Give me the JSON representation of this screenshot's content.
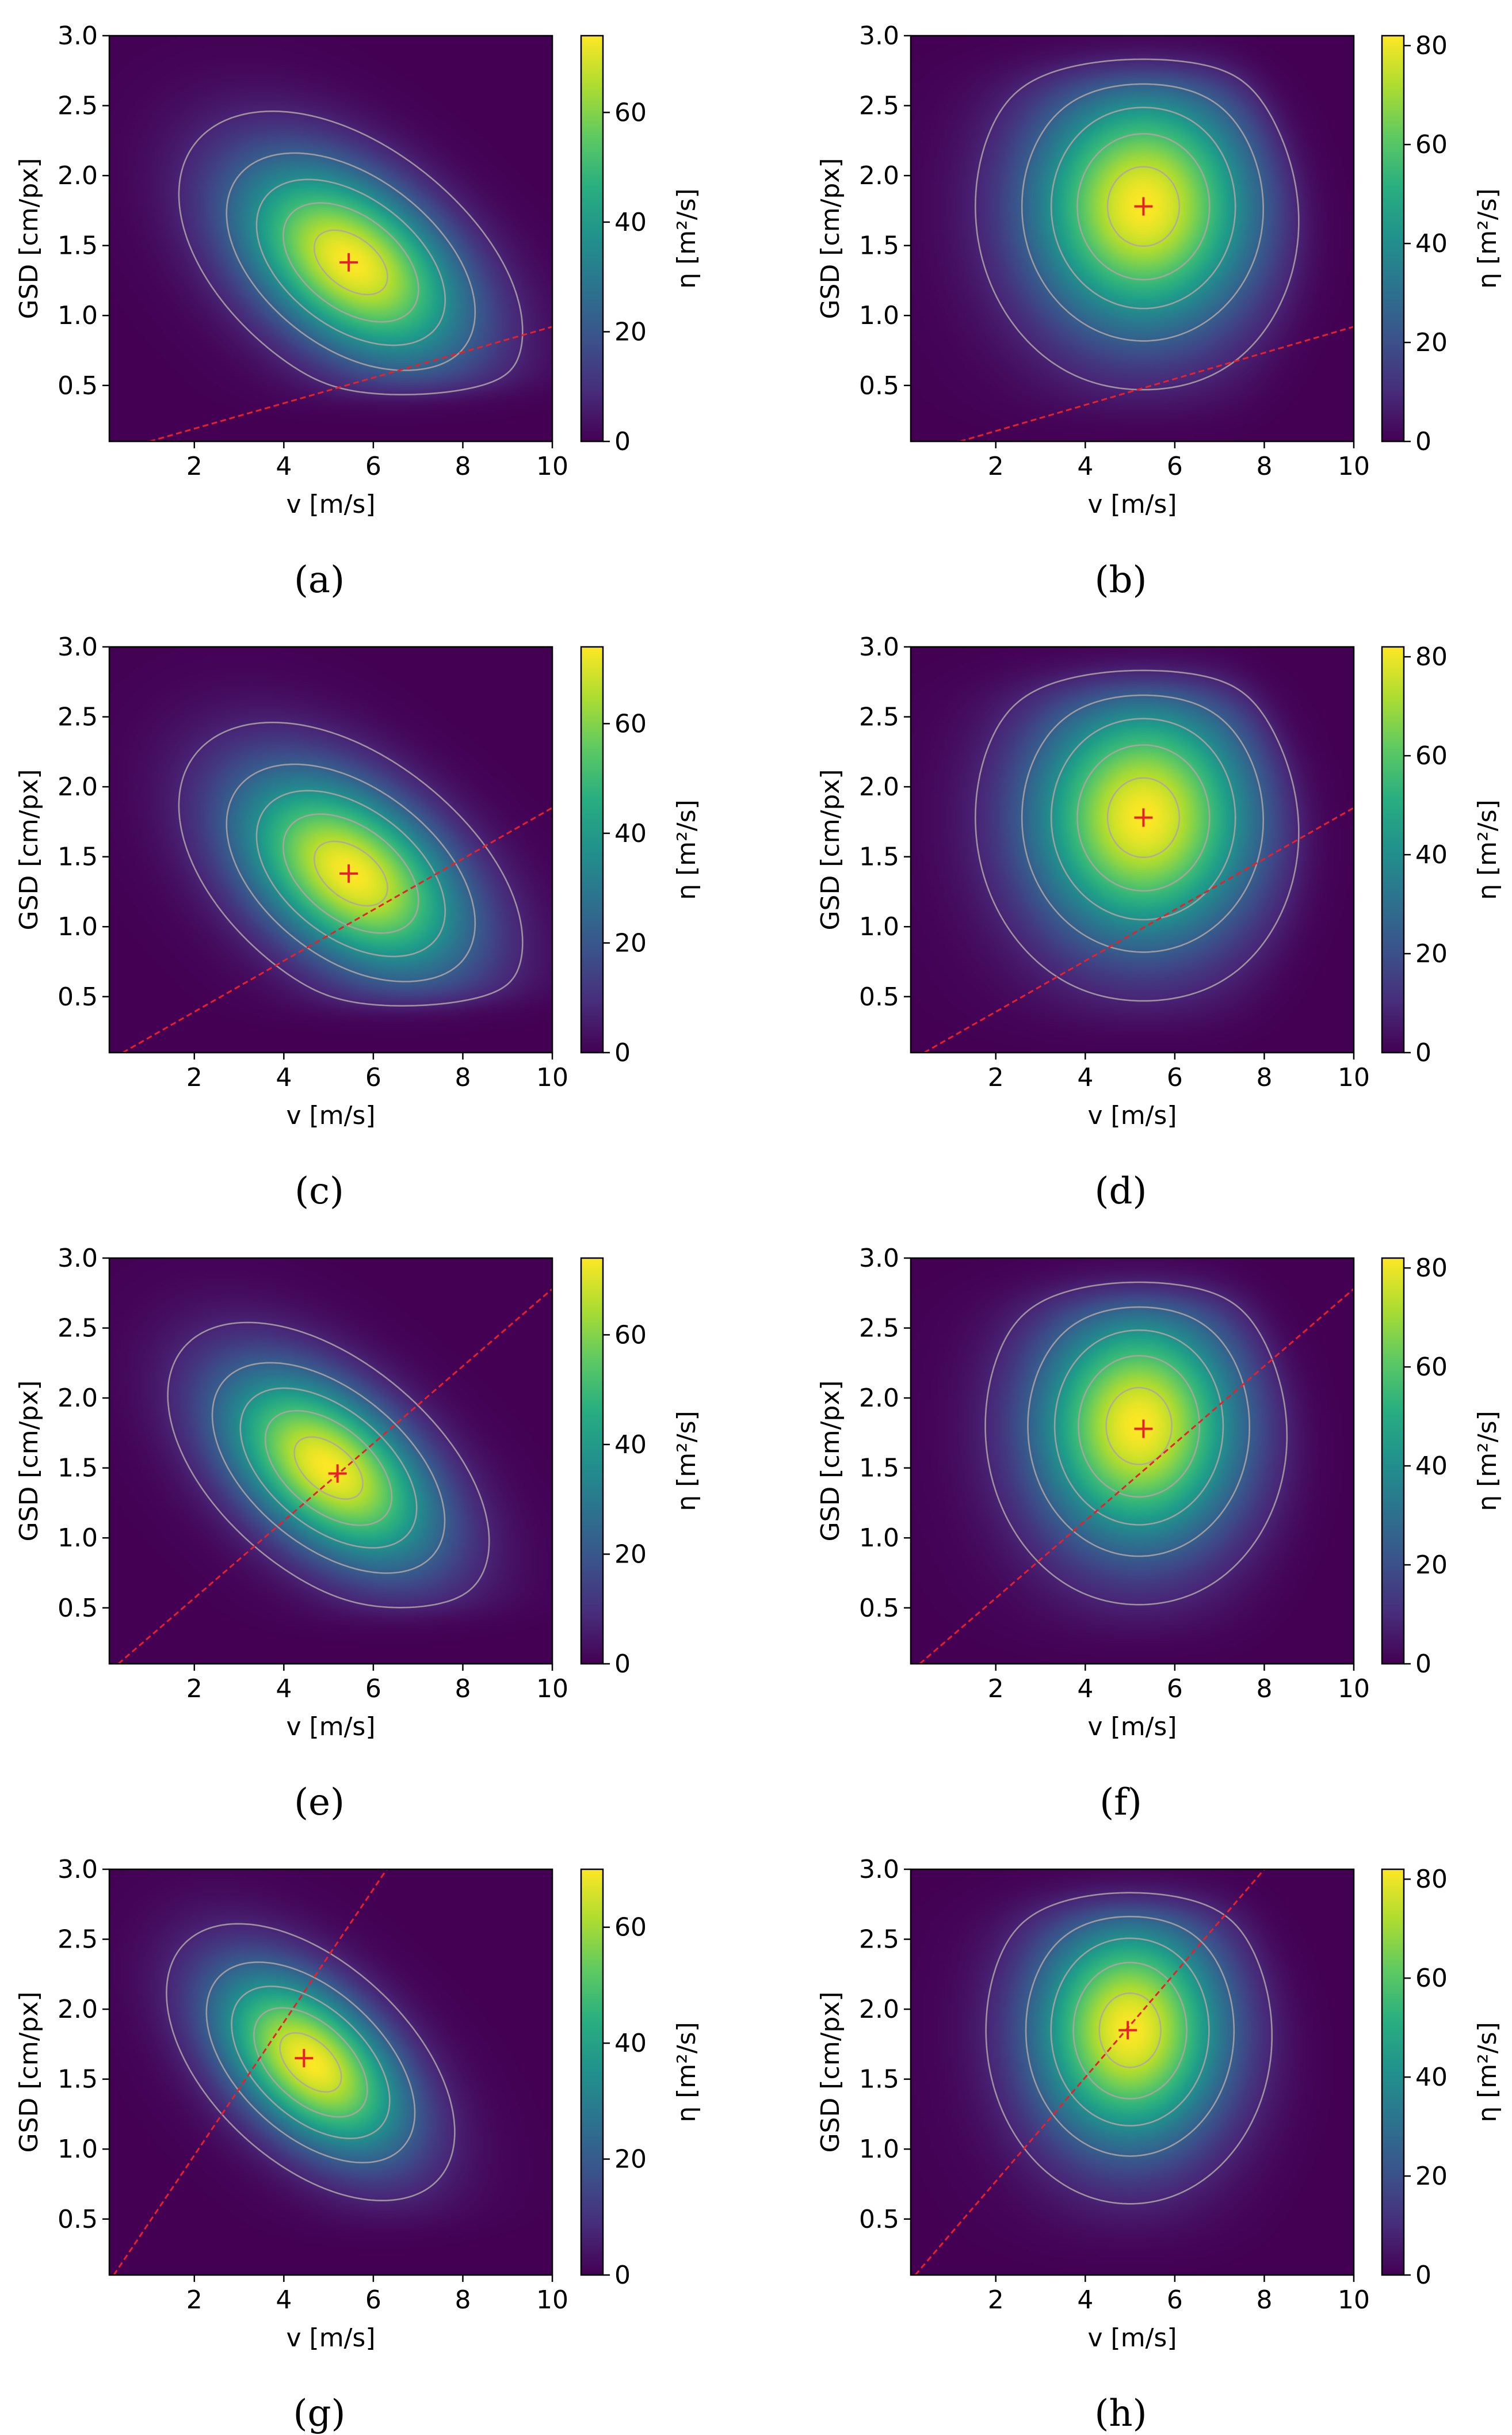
{
  "chart_data": [
    {
      "panel": "(a)",
      "label_letter": "a",
      "type": "heatmap",
      "xlabel": "v [m/s]",
      "ylabel": "GSD [cm/px]",
      "colorbar_label": "η [m²/s]",
      "xlim": [
        0.1,
        10
      ],
      "ylim": [
        0.1,
        3.0
      ],
      "x_ticks": [
        "2",
        "4",
        "6",
        "8",
        "10"
      ],
      "y_ticks": [
        "0.5",
        "1.0",
        "1.5",
        "2.0",
        "2.5",
        "3.0"
      ],
      "colorbar_range": [
        0,
        74
      ],
      "colorbar_ticks": [
        "0",
        "20",
        "40",
        "60"
      ],
      "colormap": "viridis",
      "field": {
        "kind": "skewed",
        "peak": 74,
        "v0": 5.5,
        "g0": 1.38,
        "sv": 1.6,
        "sg": 0.45,
        "rho": -0.45
      },
      "contours": [
        0.1,
        0.3,
        0.5,
        0.7,
        0.9
      ],
      "contour_color": "#b0a4a4",
      "optimum": {
        "v": 5.45,
        "gsd": 1.38,
        "color": "#e8202a"
      },
      "constraint_line": {
        "points": [
          [
            1.0,
            0.1
          ],
          [
            10.0,
            0.92
          ]
        ],
        "color": "#e8202a"
      },
      "boundary": "diagonal"
    },
    {
      "panel": "(b)",
      "label_letter": "b",
      "type": "heatmap",
      "xlabel": "v [m/s]",
      "ylabel": "GSD [cm/px]",
      "colorbar_label": "η [m²/s]",
      "xlim": [
        0.1,
        10
      ],
      "ylim": [
        0.1,
        3.0
      ],
      "x_ticks": [
        "2",
        "4",
        "6",
        "8",
        "10"
      ],
      "y_ticks": [
        "0.5",
        "1.0",
        "1.5",
        "2.0",
        "2.5",
        "3.0"
      ],
      "colorbar_range": [
        0,
        82
      ],
      "colorbar_ticks": [
        "0",
        "20",
        "40",
        "60",
        "80"
      ],
      "colormap": "viridis",
      "field": {
        "kind": "round",
        "peak": 82,
        "v0": 5.3,
        "g0": 1.78,
        "sv": 1.75,
        "sg": 0.62,
        "rho": 0.0
      },
      "contours": [
        0.1,
        0.3,
        0.5,
        0.7,
        0.9
      ],
      "contour_color": "#b0a4a4",
      "optimum": {
        "v": 5.3,
        "gsd": 1.78,
        "color": "#e8202a"
      },
      "constraint_line": {
        "points": [
          [
            1.2,
            0.1
          ],
          [
            10.0,
            0.92
          ]
        ],
        "color": "#e8202a"
      },
      "boundary": "right"
    },
    {
      "panel": "(c)",
      "label_letter": "c",
      "type": "heatmap",
      "xlabel": "v [m/s]",
      "ylabel": "GSD [cm/px]",
      "colorbar_label": "η [m²/s]",
      "xlim": [
        0.1,
        10
      ],
      "ylim": [
        0.1,
        3.0
      ],
      "x_ticks": [
        "2",
        "4",
        "6",
        "8",
        "10"
      ],
      "y_ticks": [
        "0.5",
        "1.0",
        "1.5",
        "2.0",
        "2.5",
        "3.0"
      ],
      "colorbar_range": [
        0,
        74
      ],
      "colorbar_ticks": [
        "0",
        "20",
        "40",
        "60"
      ],
      "colormap": "viridis",
      "field": {
        "kind": "skewed",
        "peak": 74,
        "v0": 5.5,
        "g0": 1.38,
        "sv": 1.6,
        "sg": 0.45,
        "rho": -0.45
      },
      "contours": [
        0.1,
        0.3,
        0.5,
        0.7,
        0.9
      ],
      "contour_color": "#b0a4a4",
      "optimum": {
        "v": 5.45,
        "gsd": 1.38,
        "color": "#e8202a"
      },
      "constraint_line": {
        "points": [
          [
            0.4,
            0.1
          ],
          [
            10.0,
            1.85
          ]
        ],
        "color": "#e8202a"
      },
      "boundary": "diagonal"
    },
    {
      "panel": "(d)",
      "label_letter": "d",
      "type": "heatmap",
      "xlabel": "v [m/s]",
      "ylabel": "GSD [cm/px]",
      "colorbar_label": "η [m²/s]",
      "xlim": [
        0.1,
        10
      ],
      "ylim": [
        0.1,
        3.0
      ],
      "x_ticks": [
        "2",
        "4",
        "6",
        "8",
        "10"
      ],
      "y_ticks": [
        "0.5",
        "1.0",
        "1.5",
        "2.0",
        "2.5",
        "3.0"
      ],
      "colorbar_range": [
        0,
        82
      ],
      "colorbar_ticks": [
        "0",
        "20",
        "40",
        "60",
        "80"
      ],
      "colormap": "viridis",
      "field": {
        "kind": "round",
        "peak": 82,
        "v0": 5.3,
        "g0": 1.78,
        "sv": 1.75,
        "sg": 0.62,
        "rho": 0.0
      },
      "contours": [
        0.1,
        0.3,
        0.5,
        0.7,
        0.9
      ],
      "contour_color": "#b0a4a4",
      "optimum": {
        "v": 5.3,
        "gsd": 1.78,
        "color": "#e8202a"
      },
      "constraint_line": {
        "points": [
          [
            0.4,
            0.1
          ],
          [
            10.0,
            1.85
          ]
        ],
        "color": "#e8202a"
      },
      "boundary": "right"
    },
    {
      "panel": "(e)",
      "label_letter": "e",
      "type": "heatmap",
      "xlabel": "v [m/s]",
      "ylabel": "GSD [cm/px]",
      "colorbar_label": "η [m²/s]",
      "xlim": [
        0.1,
        10
      ],
      "ylim": [
        0.1,
        3.0
      ],
      "x_ticks": [
        "2",
        "4",
        "6",
        "8",
        "10"
      ],
      "y_ticks": [
        "0.5",
        "1.0",
        "1.5",
        "2.0",
        "2.5",
        "3.0"
      ],
      "colorbar_range": [
        0,
        74
      ],
      "colorbar_ticks": [
        "0",
        "20",
        "40",
        "60"
      ],
      "colormap": "viridis",
      "field": {
        "kind": "skewed",
        "peak": 72,
        "v0": 5.0,
        "g0": 1.5,
        "sv": 1.45,
        "sg": 0.42,
        "rho": -0.5
      },
      "contours": [
        0.1,
        0.3,
        0.5,
        0.7,
        0.9
      ],
      "contour_color": "#b0a4a4",
      "optimum": {
        "v": 5.2,
        "gsd": 1.46,
        "color": "#e8202a"
      },
      "constraint_line": {
        "points": [
          [
            0.3,
            0.1
          ],
          [
            10.0,
            2.78
          ]
        ],
        "color": "#e8202a"
      },
      "boundary": "diagonal"
    },
    {
      "panel": "(f)",
      "label_letter": "f",
      "type": "heatmap",
      "xlabel": "v [m/s]",
      "ylabel": "GSD [cm/px]",
      "colorbar_label": "η [m²/s]",
      "xlim": [
        0.1,
        10
      ],
      "ylim": [
        0.1,
        3.0
      ],
      "x_ticks": [
        "2",
        "4",
        "6",
        "8",
        "10"
      ],
      "y_ticks": [
        "0.5",
        "1.0",
        "1.5",
        "2.0",
        "2.5",
        "3.0"
      ],
      "colorbar_range": [
        0,
        82
      ],
      "colorbar_ticks": [
        "0",
        "20",
        "40",
        "60",
        "80"
      ],
      "colormap": "viridis",
      "field": {
        "kind": "round",
        "peak": 80,
        "v0": 5.2,
        "g0": 1.8,
        "sv": 1.6,
        "sg": 0.6,
        "rho": 0.0
      },
      "contours": [
        0.1,
        0.3,
        0.5,
        0.7,
        0.9
      ],
      "contour_color": "#b0a4a4",
      "optimum": {
        "v": 5.3,
        "gsd": 1.78,
        "color": "#e8202a"
      },
      "constraint_line": {
        "points": [
          [
            0.3,
            0.1
          ],
          [
            10.0,
            2.78
          ]
        ],
        "color": "#e8202a"
      },
      "boundary": "right"
    },
    {
      "panel": "(g)",
      "label_letter": "g",
      "type": "heatmap",
      "xlabel": "v [m/s]",
      "ylabel": "GSD [cm/px]",
      "colorbar_label": "η [m²/s]",
      "xlim": [
        0.1,
        10
      ],
      "ylim": [
        0.1,
        3.0
      ],
      "x_ticks": [
        "2",
        "4",
        "6",
        "8",
        "10"
      ],
      "y_ticks": [
        "0.5",
        "1.0",
        "1.5",
        "2.0",
        "2.5",
        "3.0"
      ],
      "colorbar_range": [
        0,
        70
      ],
      "colorbar_ticks": [
        "0",
        "20",
        "40",
        "60"
      ],
      "colormap": "viridis",
      "field": {
        "kind": "skewed",
        "peak": 70,
        "v0": 4.6,
        "g0": 1.62,
        "sv": 1.3,
        "sg": 0.4,
        "rho": -0.5
      },
      "contours": [
        0.1,
        0.3,
        0.5,
        0.7,
        0.9
      ],
      "contour_color": "#b0a4a4",
      "optimum": {
        "v": 4.45,
        "gsd": 1.65,
        "color": "#e8202a"
      },
      "constraint_line": {
        "points": [
          [
            0.2,
            0.1
          ],
          [
            6.3,
            3.0
          ]
        ],
        "color": "#e8202a"
      },
      "boundary": "diagonal"
    },
    {
      "panel": "(h)",
      "label_letter": "h",
      "type": "heatmap",
      "xlabel": "v [m/s]",
      "ylabel": "GSD [cm/px]",
      "colorbar_label": "η [m²/s]",
      "xlim": [
        0.1,
        10
      ],
      "ylim": [
        0.1,
        3.0
      ],
      "x_ticks": [
        "2",
        "4",
        "6",
        "8",
        "10"
      ],
      "y_ticks": [
        "0.5",
        "1.0",
        "1.5",
        "2.0",
        "2.5",
        "3.0"
      ],
      "colorbar_range": [
        0,
        82
      ],
      "colorbar_ticks": [
        "0",
        "20",
        "40",
        "60",
        "80"
      ],
      "colormap": "viridis",
      "field": {
        "kind": "round",
        "peak": 80,
        "v0": 5.0,
        "g0": 1.85,
        "sv": 1.5,
        "sg": 0.58,
        "rho": 0.0
      },
      "contours": [
        0.1,
        0.3,
        0.5,
        0.7,
        0.9
      ],
      "contour_color": "#b0a4a4",
      "optimum": {
        "v": 4.95,
        "gsd": 1.85,
        "color": "#e8202a"
      },
      "constraint_line": {
        "points": [
          [
            0.2,
            0.1
          ],
          [
            8.0,
            3.0
          ]
        ],
        "color": "#e8202a"
      },
      "boundary": "right"
    }
  ]
}
